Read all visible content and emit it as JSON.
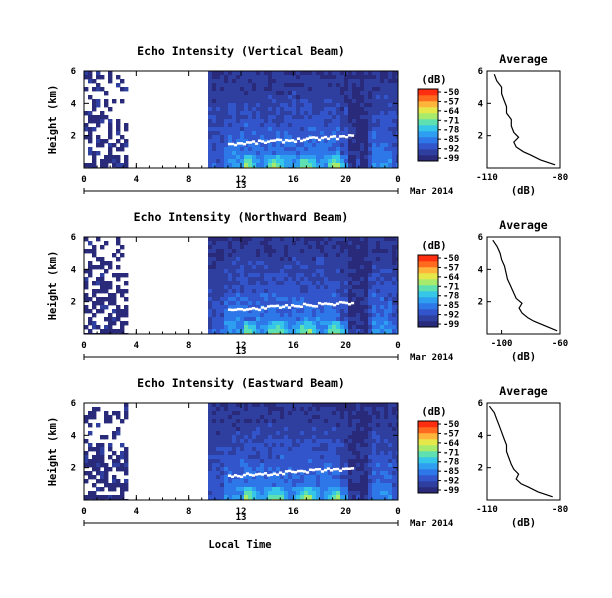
{
  "figure": {
    "xlabel": "Local Time",
    "date_label": "Mar 2014"
  },
  "colormap": [
    "#2a2a7a",
    "#2e3fa0",
    "#3355cc",
    "#2e77e8",
    "#2d9ef0",
    "#36c6e8",
    "#5fe0b0",
    "#a8ea6c",
    "#e6e84a",
    "#ffb43c",
    "#ff6a1e",
    "#ff2e10"
  ],
  "chart_data": [
    {
      "type": "heatmap",
      "title": "Echo Intensity (Vertical Beam)",
      "ylabel": "Height (km)",
      "y_ticks": [
        "6",
        "4",
        "2"
      ],
      "ylim": [
        0,
        6
      ],
      "x_ticks": [
        "0",
        "4",
        "8",
        "12",
        "16",
        "20",
        "0"
      ],
      "xlim": [
        0,
        24
      ],
      "day_label": "13",
      "colorbar": {
        "unit": "(dB)",
        "ticks": [
          "-50",
          "-57",
          "-64",
          "-71",
          "-78",
          "-85",
          "-92",
          "-99"
        ]
      },
      "profile": {
        "title": "Average",
        "xlabel": "(dB)",
        "x_ticks": [
          "-110",
          "-80"
        ],
        "xlim": [
          -110,
          -80
        ],
        "y_ticks": [
          "6",
          "4",
          "2"
        ],
        "heights": [
          0.2,
          0.5,
          0.8,
          1.0,
          1.3,
          1.6,
          1.9,
          2.2,
          2.6,
          3.0,
          3.4,
          3.8,
          4.2,
          4.6,
          5.0,
          5.4,
          5.8
        ],
        "values": [
          -82,
          -88,
          -92,
          -95,
          -98,
          -99,
          -97,
          -99,
          -100,
          -100,
          -102,
          -102,
          -103,
          -104,
          -104,
          -106,
          -107
        ]
      }
    },
    {
      "type": "heatmap",
      "title": "Echo Intensity (Northward Beam)",
      "ylabel": "Height (km)",
      "y_ticks": [
        "6",
        "4",
        "2"
      ],
      "ylim": [
        0,
        6
      ],
      "x_ticks": [
        "0",
        "4",
        "8",
        "12",
        "16",
        "20",
        "0"
      ],
      "xlim": [
        0,
        24
      ],
      "day_label": "13",
      "colorbar": {
        "unit": "(dB)",
        "ticks": [
          "-50",
          "-57",
          "-64",
          "-71",
          "-78",
          "-85",
          "-92",
          "-99"
        ]
      },
      "profile": {
        "title": "Average",
        "xlabel": "(dB)",
        "x_ticks": [
          "-100",
          "-60"
        ],
        "xlim": [
          -110,
          -60
        ],
        "y_ticks": [
          "6",
          "4",
          "2"
        ],
        "heights": [
          0.2,
          0.5,
          0.8,
          1.0,
          1.3,
          1.6,
          1.9,
          2.2,
          2.6,
          3.0,
          3.4,
          3.8,
          4.2,
          4.6,
          5.0,
          5.4,
          5.8
        ],
        "values": [
          -62,
          -70,
          -78,
          -82,
          -86,
          -88,
          -86,
          -90,
          -92,
          -94,
          -96,
          -97,
          -98,
          -100,
          -101,
          -103,
          -106
        ]
      }
    },
    {
      "type": "heatmap",
      "title": "Echo Intensity (Eastward Beam)",
      "ylabel": "Height (km)",
      "y_ticks": [
        "6",
        "4",
        "2"
      ],
      "ylim": [
        0,
        6
      ],
      "x_ticks": [
        "0",
        "4",
        "8",
        "12",
        "16",
        "20",
        "0"
      ],
      "xlim": [
        0,
        24
      ],
      "day_label": "13",
      "colorbar": {
        "unit": "(dB)",
        "ticks": [
          "-50",
          "-57",
          "-64",
          "-71",
          "-78",
          "-85",
          "-92",
          "-99"
        ]
      },
      "profile": {
        "title": "Average",
        "xlabel": "(dB)",
        "x_ticks": [
          "-110",
          "-80"
        ],
        "xlim": [
          -110,
          -80
        ],
        "y_ticks": [
          "6",
          "4",
          "2"
        ],
        "heights": [
          0.2,
          0.5,
          0.8,
          1.0,
          1.3,
          1.6,
          1.9,
          2.2,
          2.6,
          3.0,
          3.4,
          3.8,
          4.2,
          4.6,
          5.0,
          5.4,
          5.8
        ],
        "values": [
          -83,
          -89,
          -93,
          -96,
          -98,
          -97,
          -99,
          -100,
          -101,
          -102,
          -102,
          -103,
          -104,
          -105,
          -106,
          -107,
          -109
        ]
      }
    }
  ]
}
